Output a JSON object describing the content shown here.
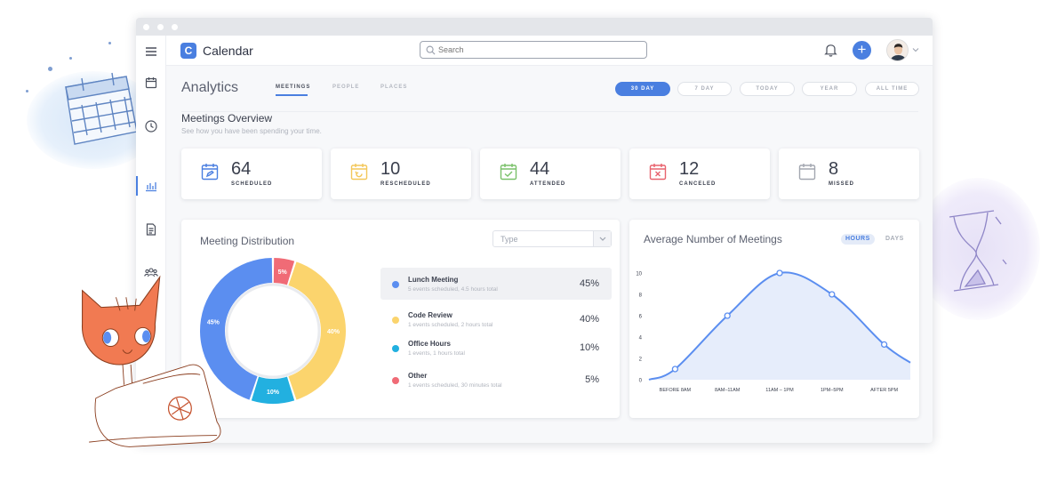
{
  "app": {
    "title": "Calendar",
    "logo_letter": "C"
  },
  "search": {
    "placeholder": "Search"
  },
  "sidebar": {
    "items": [
      "menu",
      "calendar",
      "clock",
      "analytics",
      "document",
      "users"
    ]
  },
  "page": {
    "title": "Analytics",
    "subtabs": [
      {
        "label": "MEETINGS",
        "active": true
      },
      {
        "label": "PEOPLE",
        "active": false
      },
      {
        "label": "PLACES",
        "active": false
      }
    ],
    "periods": [
      {
        "label": "30 DAY",
        "active": true
      },
      {
        "label": "7 DAY",
        "active": false
      },
      {
        "label": "TODAY",
        "active": false
      },
      {
        "label": "YEAR",
        "active": false
      },
      {
        "label": "ALL TIME",
        "active": false
      }
    ]
  },
  "overview": {
    "title": "Meetings Overview",
    "subtitle": "See how you have been spending your time.",
    "stats": [
      {
        "value": "64",
        "label": "SCHEDULED",
        "color": "#4a7fe0",
        "icon": "calendar-edit-icon"
      },
      {
        "value": "10",
        "label": "RESCHEDULED",
        "color": "#f3c75a",
        "icon": "calendar-reschedule-icon"
      },
      {
        "value": "44",
        "label": "ATTENDED",
        "color": "#7ac16a",
        "icon": "calendar-check-icon"
      },
      {
        "value": "12",
        "label": "CANCELED",
        "color": "#e8636e",
        "icon": "calendar-cancel-icon"
      },
      {
        "value": "8",
        "label": "MISSED",
        "color": "#a3a7b0",
        "icon": "calendar-missed-icon"
      }
    ]
  },
  "distribution": {
    "title": "Meeting Distribution",
    "select_value": "Type",
    "legend": [
      {
        "name": "Lunch Meeting",
        "desc": "5 events scheduled, 4.5 hours total",
        "pct": "45%",
        "color": "#5b8ef0",
        "active": true
      },
      {
        "name": "Code Review",
        "desc": "1 events scheduled, 2 hours total",
        "pct": "40%",
        "color": "#fbd46d",
        "active": false
      },
      {
        "name": "Office Hours",
        "desc": "1 events, 1 hours total",
        "pct": "10%",
        "color": "#22b0e0",
        "active": false
      },
      {
        "name": "Other",
        "desc": "1 events scheduled, 30 minutes total",
        "pct": "5%",
        "color": "#f06b76",
        "active": false
      }
    ]
  },
  "average": {
    "title": "Average Number of Meetings",
    "toggle": [
      {
        "label": "HOURS",
        "active": true
      },
      {
        "label": "DAYS",
        "active": false
      }
    ]
  },
  "chart_data": [
    {
      "type": "pie",
      "title": "Meeting Distribution",
      "categories": [
        "Lunch Meeting",
        "Code Review",
        "Office Hours",
        "Other"
      ],
      "values": [
        45,
        40,
        10,
        5
      ],
      "labels": [
        "45%",
        "40%",
        "10%",
        "5%"
      ],
      "colors": [
        "#5b8ef0",
        "#fbd46d",
        "#22b0e0",
        "#f06b76"
      ]
    },
    {
      "type": "area",
      "title": "Average Number of Meetings",
      "categories": [
        "BEFORE 8AM",
        "8AM–11AM",
        "11AM – 1PM",
        "1PM–5PM",
        "AFTER 5PM"
      ],
      "x": [
        0,
        0.5,
        1.5,
        2.5,
        3.5,
        4.5,
        5
      ],
      "y": [
        0,
        1,
        6,
        10,
        8,
        3.3,
        1.6
      ],
      "markers": [
        1,
        2,
        3,
        4,
        5
      ],
      "yticks": [
        "0",
        "2",
        "4",
        "6",
        "8",
        "10"
      ],
      "ylim": [
        0,
        10
      ],
      "color": "#5b8ef0",
      "grid": false
    }
  ]
}
